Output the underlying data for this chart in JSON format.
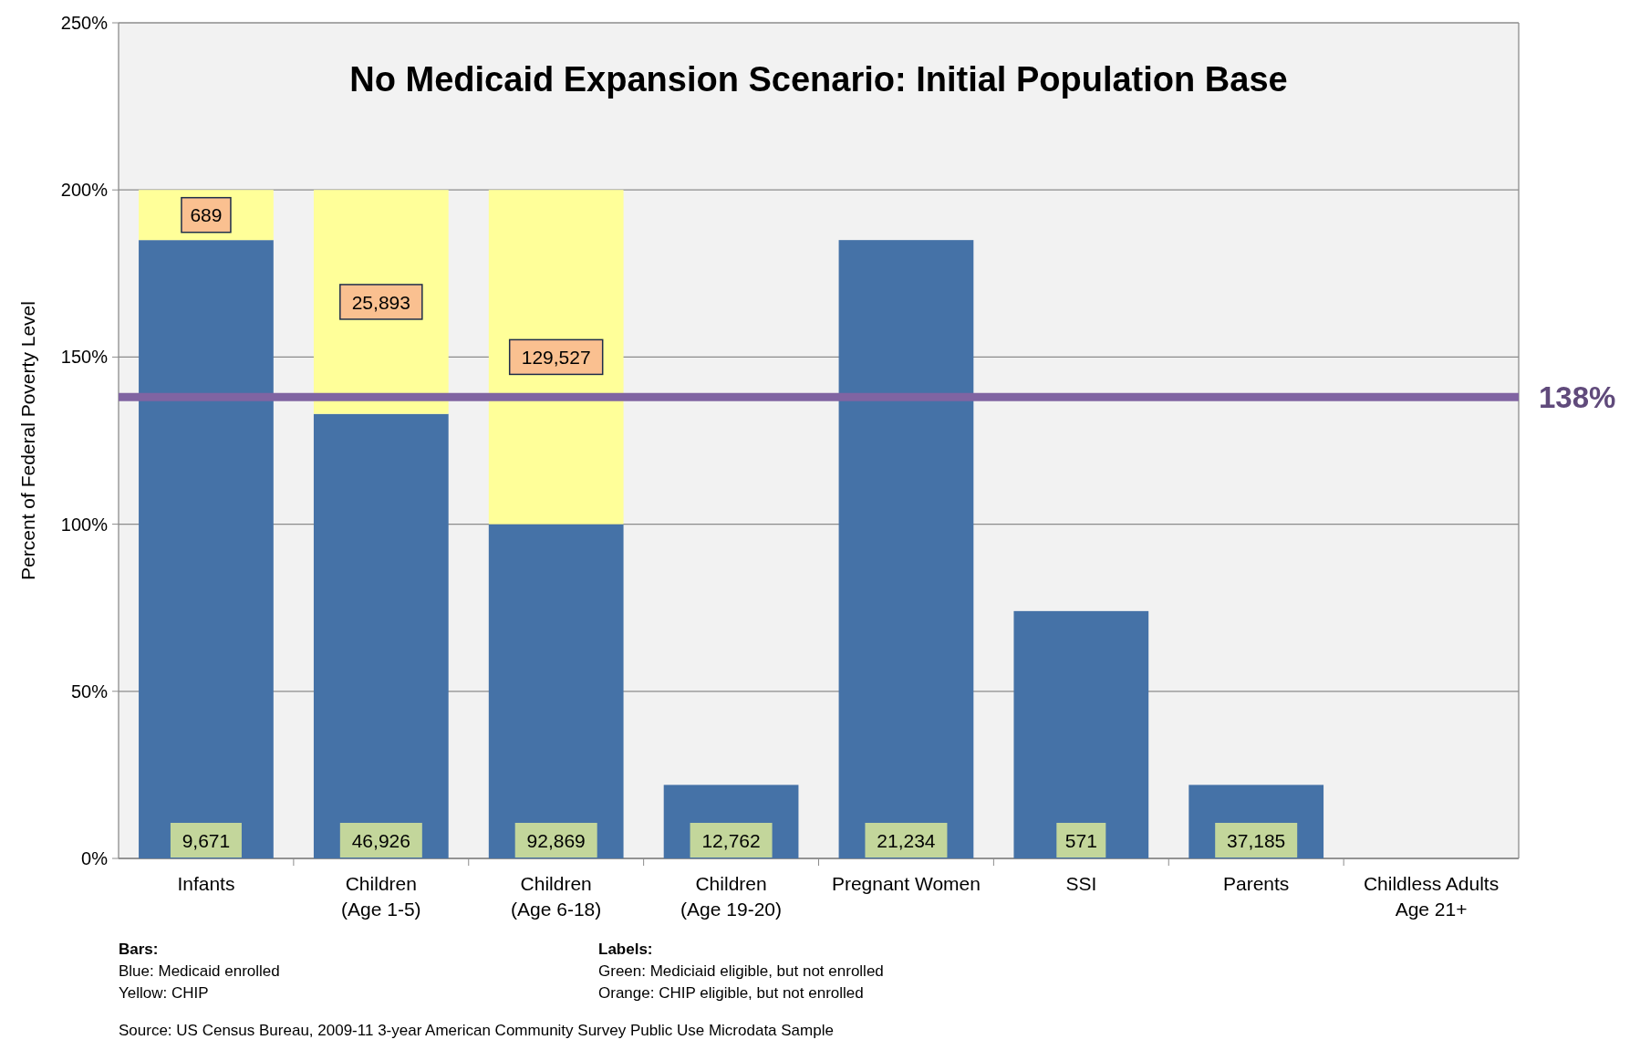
{
  "chart_data": {
    "type": "bar",
    "title": "No Medicaid Expansion Scenario:  Initial Population Base",
    "ylabel": "Percent of Federal Poverty Level",
    "categories": [
      "Infants",
      "Children\n(Age 1-5)",
      "Children\n(Age 6-18)",
      "Children\n(Age 19-20)",
      "Pregnant Women",
      "SSI",
      "Parents",
      "Childless Adults\nAge 21+"
    ],
    "stacked": true,
    "series": [
      {
        "color": "#4572a7",
        "values": [
          185,
          133,
          100,
          22,
          185,
          74,
          22,
          null
        ]
      },
      {
        "color": "#ffff99",
        "values": [
          15,
          67,
          100,
          null,
          null,
          null,
          null,
          null
        ]
      }
    ],
    "ylim": [
      0,
      250
    ],
    "yticks": [
      {
        "value": 0,
        "label": "0%"
      },
      {
        "value": 50,
        "label": "50%"
      },
      {
        "value": 100,
        "label": "100%"
      },
      {
        "value": 150,
        "label": "150%"
      },
      {
        "value": 200,
        "label": "200%"
      },
      {
        "value": 250,
        "label": "250%"
      }
    ],
    "grid": "y",
    "ref_lines": [
      {
        "axis": "y",
        "value": 138,
        "label": "138%",
        "color": "#8064a2"
      }
    ],
    "annotations": [
      "689",
      "25,893",
      "129,527",
      "9,671",
      "46,926",
      "92,869",
      "12,762",
      "21,234",
      "571",
      "37,185",
      "Bars:",
      "Blue: Medicaid enrolled",
      "Yellow:  CHIP",
      "Labels:",
      "Green: Mediciaid eligible, but not enrolled",
      "Orange:  CHIP eligible, but not enrolled",
      "Source:  US Census Bureau, 2009-11 3-year American Community Survey Public Use Microdata Sample"
    ]
  }
}
